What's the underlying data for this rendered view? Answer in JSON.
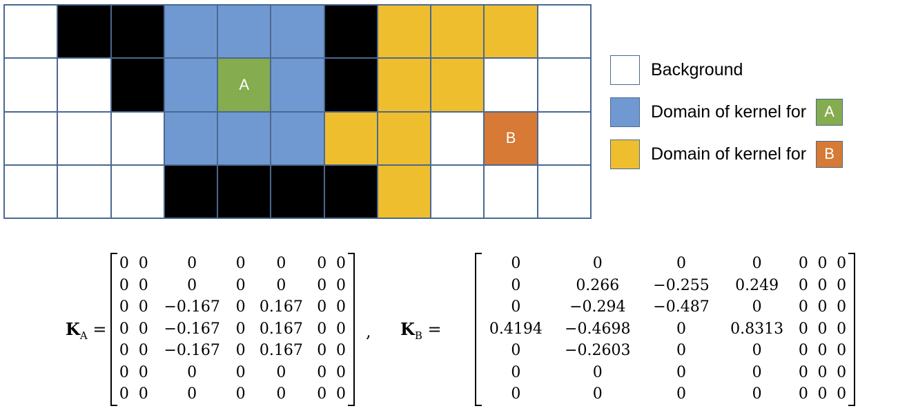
{
  "grid": {
    "rows": [
      [
        "W",
        "K",
        "K",
        "Bl",
        "Bl",
        "Bl",
        "K",
        "Y",
        "Y",
        "Y",
        "W"
      ],
      [
        "W",
        "W",
        "K",
        "Bl",
        "A",
        "Bl",
        "K",
        "Y",
        "Y",
        "W",
        "W"
      ],
      [
        "W",
        "W",
        "W",
        "Bl",
        "Bl",
        "Bl",
        "Y",
        "Y",
        "W",
        "B",
        "W"
      ],
      [
        "W",
        "W",
        "W",
        "K",
        "K",
        "K",
        "K",
        "Y",
        "W",
        "W",
        "W"
      ]
    ],
    "labels": {
      "A": "A",
      "B": "B"
    }
  },
  "colors": {
    "W": "#ffffff",
    "K": "#000000",
    "Bl": "#7099d2",
    "Y": "#efbe2f",
    "A": "#85ac4e",
    "B": "#d67a36"
  },
  "legend": [
    {
      "label": "Background",
      "swatch": "W"
    },
    {
      "label": "Domain of kernel for",
      "swatch": "Bl",
      "badge": "A"
    },
    {
      "label": "Domain of kernel for",
      "swatch": "Y",
      "badge": "B"
    }
  ],
  "equations": {
    "KA": {
      "symbol": "K",
      "sub": "A",
      "eq": "=",
      "sep": ",",
      "rows": [
        [
          "0",
          "0",
          "0",
          "0",
          "0",
          "0",
          "0"
        ],
        [
          "0",
          "0",
          "0",
          "0",
          "0",
          "0",
          "0"
        ],
        [
          "0",
          "0",
          "−0.167",
          "0",
          "0.167",
          "0",
          "0"
        ],
        [
          "0",
          "0",
          "−0.167",
          "0",
          "0.167",
          "0",
          "0"
        ],
        [
          "0",
          "0",
          "−0.167",
          "0",
          "0.167",
          "0",
          "0"
        ],
        [
          "0",
          "0",
          "0",
          "0",
          "0",
          "0",
          "0"
        ],
        [
          "0",
          "0",
          "0",
          "0",
          "0",
          "0",
          "0"
        ]
      ]
    },
    "KB": {
      "symbol": "K",
      "sub": "B",
      "eq": "=",
      "rows": [
        [
          "0",
          "0",
          "0",
          "0",
          "0",
          "0",
          "0"
        ],
        [
          "0",
          "0.266",
          "−0.255",
          "0.249",
          "0",
          "0",
          "0"
        ],
        [
          "0",
          "−0.294",
          "−0.487",
          "0",
          "0",
          "0",
          "0"
        ],
        [
          "0.4194",
          "−0.4698",
          "0",
          "0.8313",
          "0",
          "0",
          "0"
        ],
        [
          "0",
          "−0.2603",
          "0",
          "0",
          "0",
          "0",
          "0"
        ],
        [
          "0",
          "0",
          "0",
          "0",
          "0",
          "0",
          "0"
        ],
        [
          "0",
          "0",
          "0",
          "0",
          "0",
          "0",
          "0"
        ]
      ]
    }
  }
}
